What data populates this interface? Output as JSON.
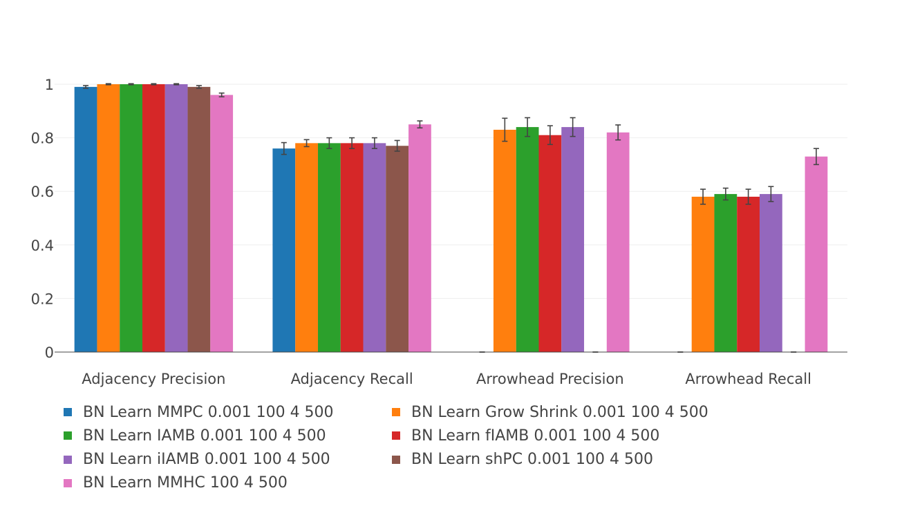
{
  "chart_data": {
    "type": "bar",
    "title": "",
    "xlabel": "",
    "ylabel": "",
    "ylim": [
      0,
      1
    ],
    "yticks": [
      0,
      0.2,
      0.4,
      0.6,
      0.8,
      1
    ],
    "ytick_labels": [
      "0",
      "0.2",
      "0.4",
      "0.6",
      "0.8",
      "1"
    ],
    "grid": true,
    "legend_position": "bottom",
    "categories": [
      "Adjacency Precision",
      "Adjacency Recall",
      "Arrowhead Precision",
      "Arrowhead Recall"
    ],
    "series": [
      {
        "name": "BN Learn MMPC 0.001 100 4 500",
        "color": "#1f77b4",
        "values": [
          0.99,
          0.76,
          0,
          0
        ],
        "errors": [
          0.005,
          0.022,
          0,
          0
        ]
      },
      {
        "name": "BN Learn Grow Shrink 0.001 100 4 500",
        "color": "#ff7f0e",
        "values": [
          1.0,
          0.78,
          0.83,
          0.58
        ],
        "errors": [
          0.002,
          0.013,
          0.043,
          0.028
        ]
      },
      {
        "name": "BN Learn IAMB 0.001 100 4 500",
        "color": "#2ca02c",
        "values": [
          1.0,
          0.78,
          0.84,
          0.59
        ],
        "errors": [
          0.002,
          0.02,
          0.035,
          0.022
        ]
      },
      {
        "name": "BN Learn fIAMB 0.001 100 4 500",
        "color": "#d62728",
        "values": [
          1.0,
          0.78,
          0.81,
          0.58
        ],
        "errors": [
          0.002,
          0.02,
          0.035,
          0.028
        ]
      },
      {
        "name": "BN Learn iIAMB 0.001 100 4 500",
        "color": "#9467bd",
        "values": [
          1.0,
          0.78,
          0.84,
          0.59
        ],
        "errors": [
          0.002,
          0.02,
          0.035,
          0.028
        ]
      },
      {
        "name": "BN Learn shPC 0.001 100 4 500",
        "color": "#8c564b",
        "values": [
          0.99,
          0.77,
          0,
          0
        ],
        "errors": [
          0.005,
          0.02,
          0,
          0
        ]
      },
      {
        "name": "BN Learn MMHC 100 4 500",
        "color": "#e377c2",
        "values": [
          0.96,
          0.85,
          0.82,
          0.73
        ],
        "errors": [
          0.007,
          0.013,
          0.028,
          0.03
        ]
      }
    ]
  }
}
